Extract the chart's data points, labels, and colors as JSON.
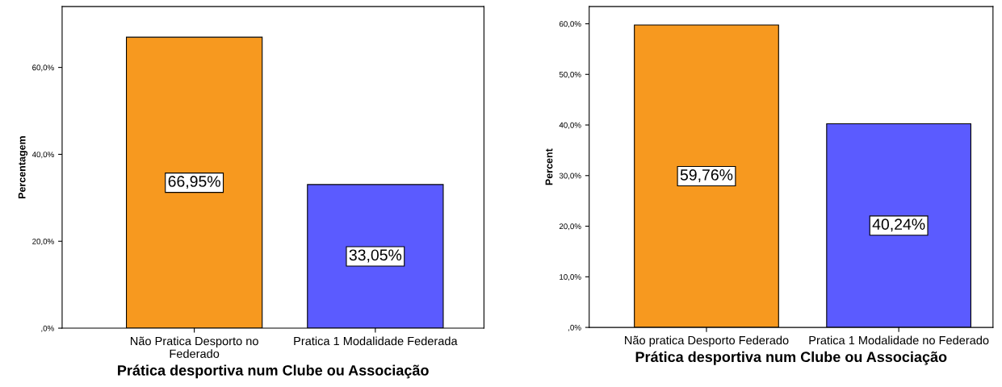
{
  "chart_data": [
    {
      "type": "bar",
      "xlabel": "Prática desportiva num Clube ou Associação",
      "ylabel": "Percentagem",
      "categories": [
        "Não Pratica Desporto no\nFederado",
        "Pratica 1 Modalidade Federada"
      ],
      "values": [
        66.95,
        33.05
      ],
      "colors": [
        "#f7991f",
        "#5b5bff"
      ],
      "value_labels": [
        "66,95%",
        "33,05%"
      ],
      "ylim": [
        0,
        74
      ],
      "yticks": [
        {
          "value": 0,
          "label": ",0%"
        },
        {
          "value": 20,
          "label": "20,0%"
        },
        {
          "value": 40,
          "label": "40,0%"
        },
        {
          "value": 60,
          "label": "60,0%"
        }
      ],
      "grid": false
    },
    {
      "type": "bar",
      "xlabel": "Prática desportiva num Clube ou Associação",
      "ylabel": "Percent",
      "categories": [
        "Não pratica Desporto Federado",
        "Pratica 1 Modalidade no Federado"
      ],
      "values": [
        59.76,
        40.24
      ],
      "colors": [
        "#f7991f",
        "#5b5bff"
      ],
      "value_labels": [
        "59,76%",
        "40,24%"
      ],
      "ylim": [
        0,
        63.4
      ],
      "yticks": [
        {
          "value": 0,
          "label": ",0%"
        },
        {
          "value": 10,
          "label": "10,0%"
        },
        {
          "value": 20,
          "label": "20,0%"
        },
        {
          "value": 30,
          "label": "30,0%"
        },
        {
          "value": 40,
          "label": "40,0%"
        },
        {
          "value": 50,
          "label": "50,0%"
        },
        {
          "value": 60,
          "label": "60,0%"
        }
      ],
      "grid": false
    }
  ]
}
